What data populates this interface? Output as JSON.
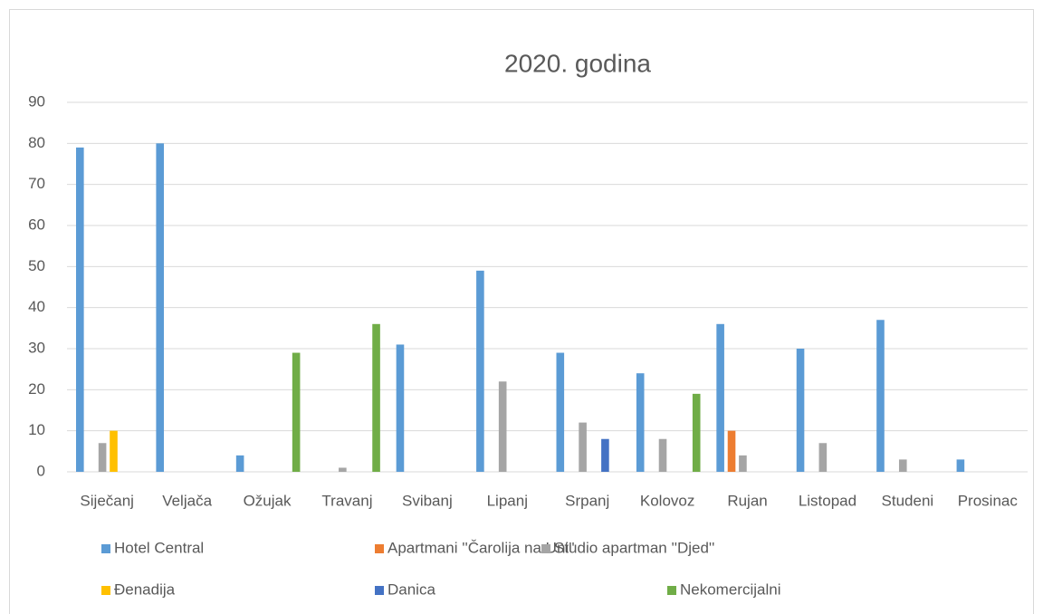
{
  "chart_data": {
    "type": "bar",
    "title": "2020. godina",
    "categories": [
      "Siječanj",
      "Veljača",
      "Ožujak",
      "Travanj",
      "Svibanj",
      "Lipanj",
      "Srpanj",
      "Kolovoz",
      "Rujan",
      "Listopad",
      "Studeni",
      "Prosinac"
    ],
    "series": [
      {
        "name": "Hotel Central",
        "color": "#5b9bd5",
        "values": [
          79,
          80,
          4,
          0,
          31,
          49,
          29,
          24,
          36,
          30,
          37,
          3
        ]
      },
      {
        "name": "Apartmani ''Čarolija na Uni''",
        "color": "#ed7d31",
        "values": [
          0,
          0,
          0,
          0,
          0,
          0,
          0,
          0,
          10,
          0,
          0,
          0
        ]
      },
      {
        "name": "Studio apartman ''Djed''",
        "color": "#a5a5a5",
        "values": [
          7,
          0,
          0,
          1,
          0,
          22,
          12,
          8,
          4,
          7,
          3,
          0
        ]
      },
      {
        "name": "Đenadija",
        "color": "#ffc000",
        "values": [
          10,
          0,
          0,
          0,
          0,
          0,
          0,
          0,
          0,
          0,
          0,
          0
        ]
      },
      {
        "name": "Danica",
        "color": "#4472c4",
        "values": [
          0,
          0,
          0,
          0,
          0,
          0,
          8,
          0,
          0,
          0,
          0,
          0
        ]
      },
      {
        "name": "Nekomercijalni",
        "color": "#70ad47",
        "values": [
          0,
          0,
          29,
          36,
          0,
          0,
          0,
          19,
          0,
          0,
          0,
          0
        ]
      }
    ],
    "ylim": [
      0,
      90
    ],
    "yticks": [
      0,
      10,
      20,
      30,
      40,
      50,
      60,
      70,
      80,
      90
    ],
    "grid": true,
    "legend": "bottom"
  }
}
